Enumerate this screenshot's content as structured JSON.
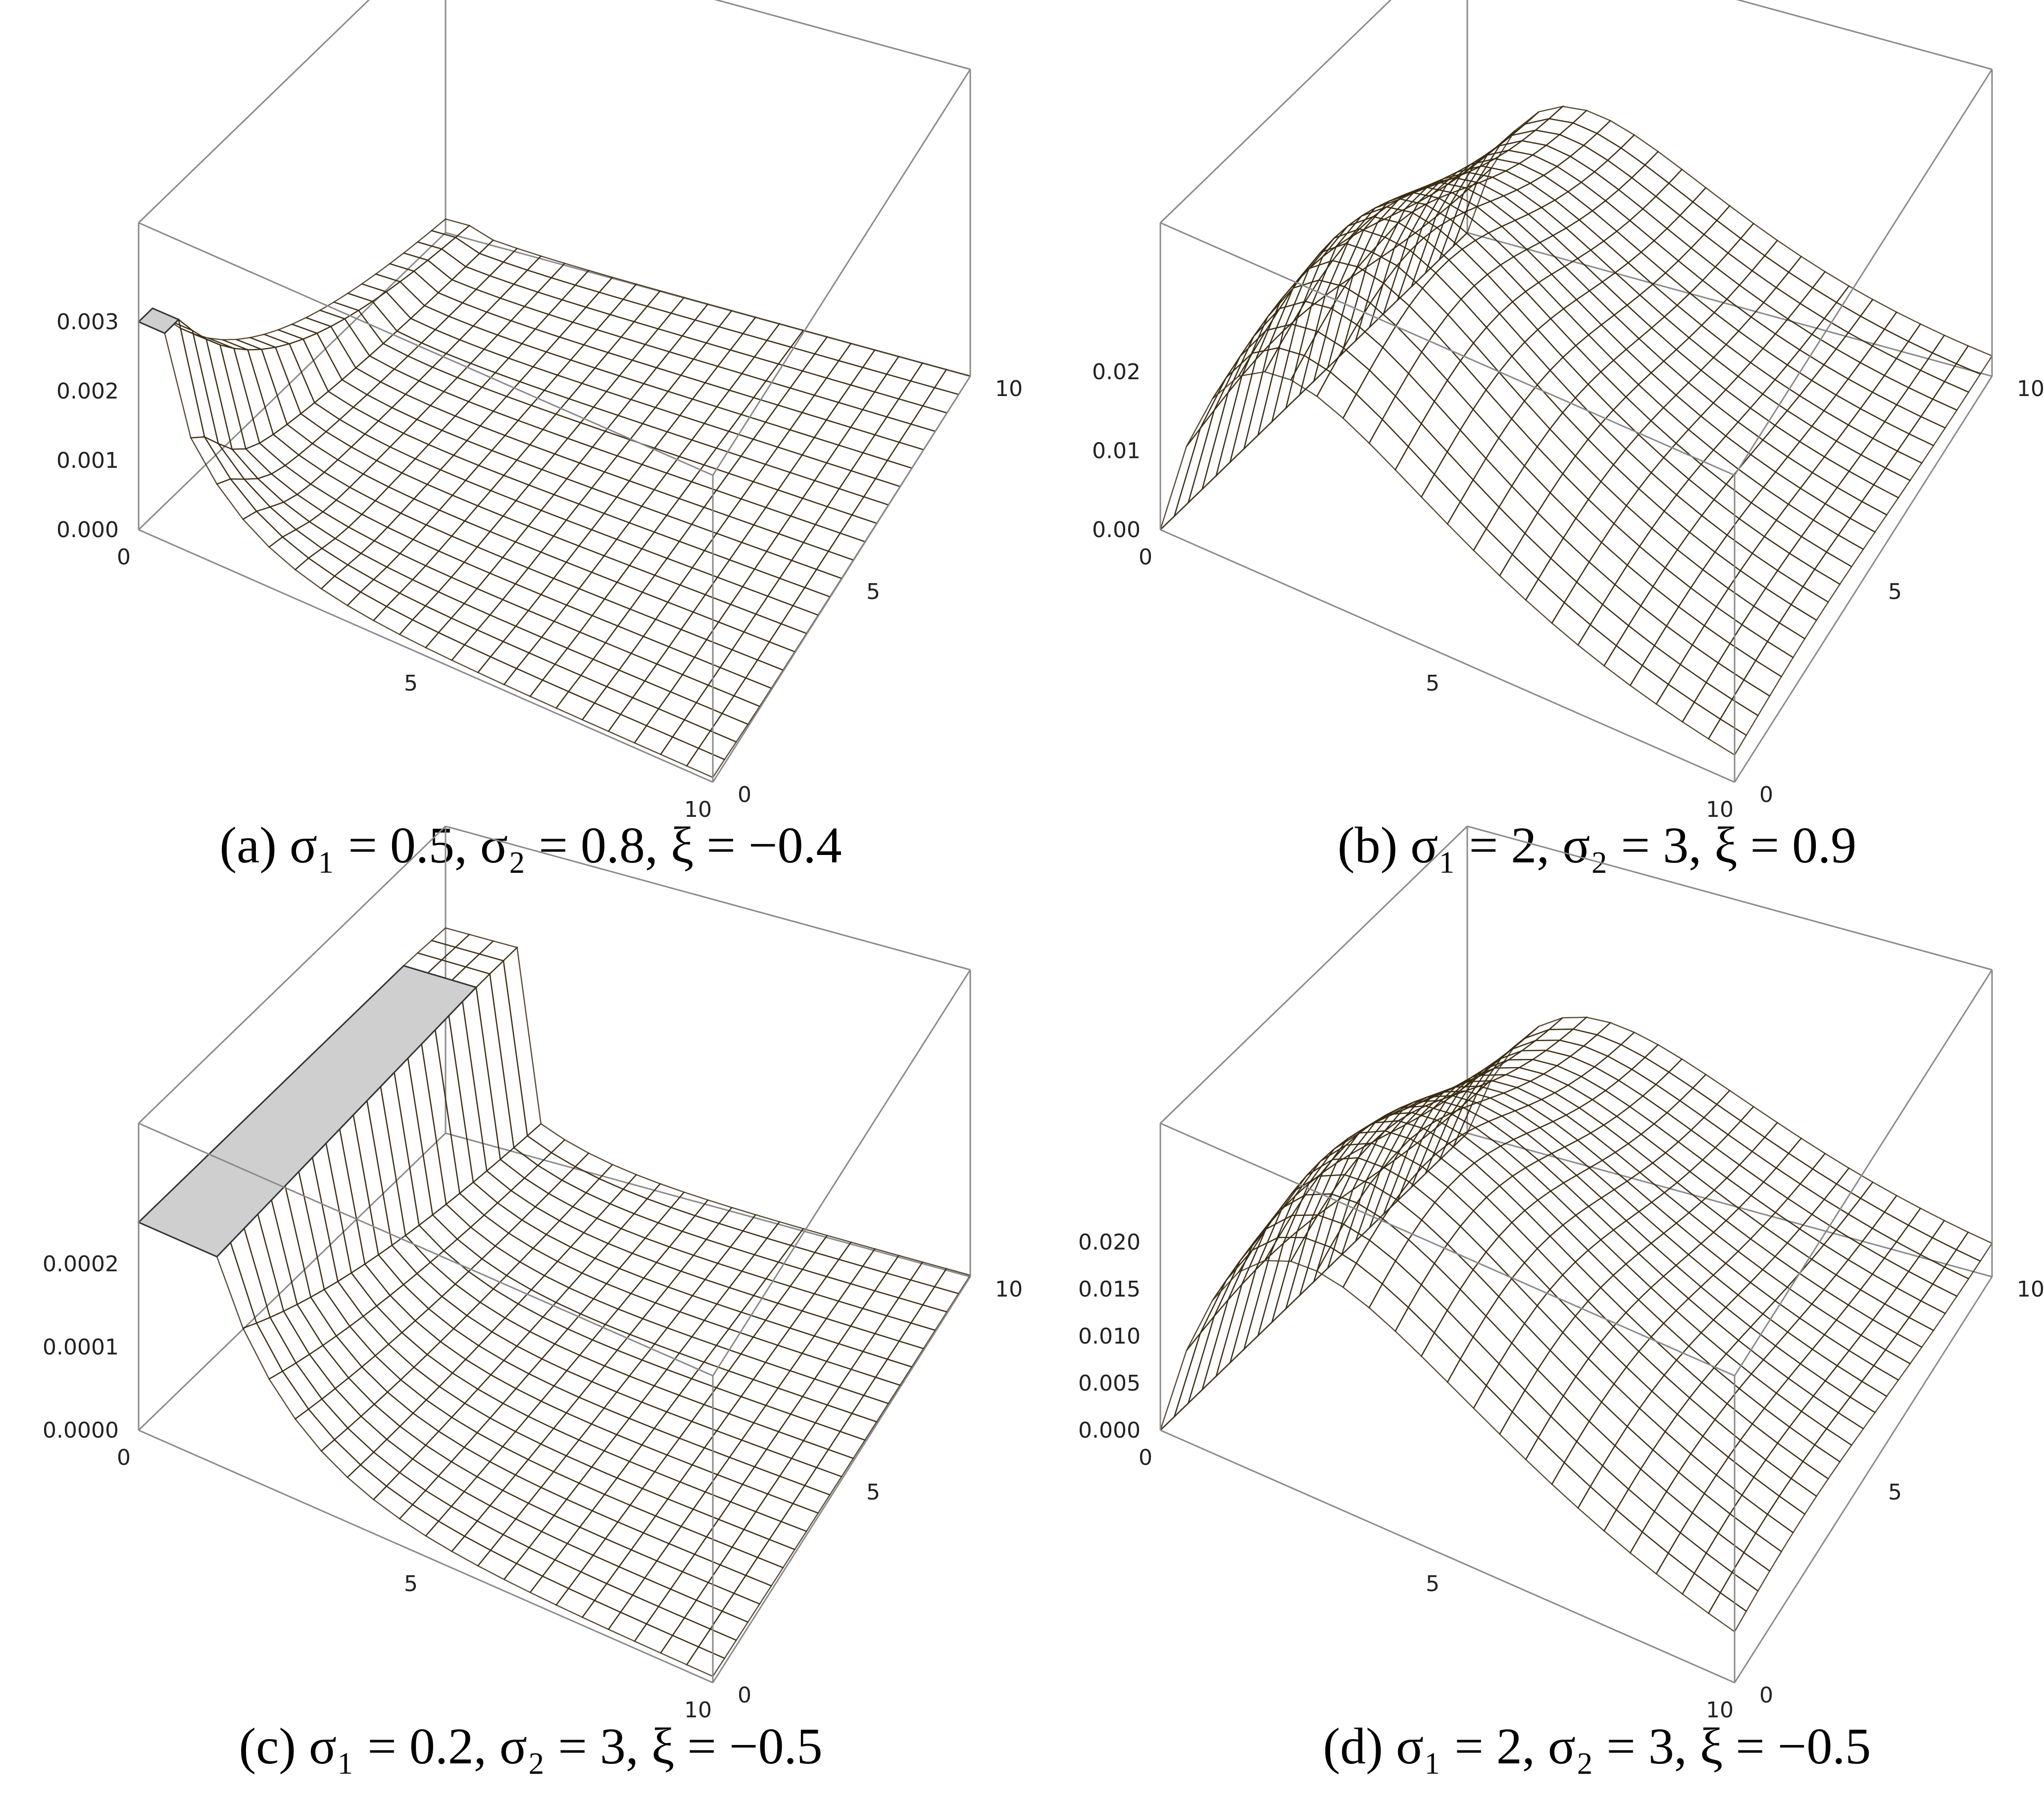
{
  "chart_data": [
    {
      "type": "surface3d",
      "id": "a",
      "caption_prefix": "(a)",
      "caption_math": "σ₁ = 0.5, σ₂ = 0.8, ξ = −0.4",
      "sigma1": 0.5,
      "sigma2": 0.8,
      "xi": -0.4,
      "x_ticks": [
        "0",
        "5",
        "10"
      ],
      "y_ticks": [
        "0",
        "5",
        "10"
      ],
      "z_ticks": [
        "0.000",
        "0.001",
        "0.002",
        "0.003"
      ],
      "xlim": [
        0,
        10
      ],
      "ylim": [
        0,
        10
      ],
      "zlim": [
        0,
        0.003
      ],
      "clipped": true,
      "color": "#f2a020"
    },
    {
      "type": "surface3d",
      "id": "b",
      "caption_prefix": "(b)",
      "caption_math": "σ₁ = 2, σ₂ = 3, ξ = 0.9",
      "sigma1": 2,
      "sigma2": 3,
      "xi": 0.9,
      "x_ticks": [
        "0",
        "5",
        "10"
      ],
      "y_ticks": [
        "0",
        "5",
        "10"
      ],
      "z_ticks": [
        "0.00",
        "0.01",
        "0.02"
      ],
      "xlim": [
        0,
        10
      ],
      "ylim": [
        0,
        10
      ],
      "zlim": [
        0,
        0.025
      ],
      "clipped": false,
      "color": "#f5b41e"
    },
    {
      "type": "surface3d",
      "id": "c",
      "caption_prefix": "(c)",
      "caption_math": "σ₁ = 0.2, σ₂ = 3, ξ = −0.5",
      "sigma1": 0.2,
      "sigma2": 3,
      "xi": -0.5,
      "x_ticks": [
        "0",
        "5",
        "10"
      ],
      "y_ticks": [
        "0",
        "5",
        "10"
      ],
      "z_ticks": [
        "0.0000",
        "0.0001",
        "0.0002"
      ],
      "xlim": [
        0,
        10
      ],
      "ylim": [
        0,
        10
      ],
      "zlim": [
        0,
        0.00025
      ],
      "clipped": true,
      "color": "#f2a020"
    },
    {
      "type": "surface3d",
      "id": "d",
      "caption_prefix": "(d)",
      "caption_math": "σ₁ = 2, σ₂ = 3, ξ = −0.5",
      "sigma1": 2,
      "sigma2": 3,
      "xi": -0.5,
      "x_ticks": [
        "0",
        "5",
        "10"
      ],
      "y_ticks": [
        "0",
        "5",
        "10"
      ],
      "z_ticks": [
        "0.000",
        "0.005",
        "0.010",
        "0.015",
        "0.020"
      ],
      "xlim": [
        0,
        10
      ],
      "ylim": [
        0,
        10
      ],
      "zlim": [
        0,
        0.021
      ],
      "clipped": false,
      "color": "#f5b41e"
    }
  ],
  "colors": {
    "surface_base": "#f2a020",
    "surface_highlight": "#ffe83a",
    "surface_shadow": "#6a3a10",
    "clip_face": "#cfcfcf",
    "box_edge": "#8a8a8a"
  }
}
